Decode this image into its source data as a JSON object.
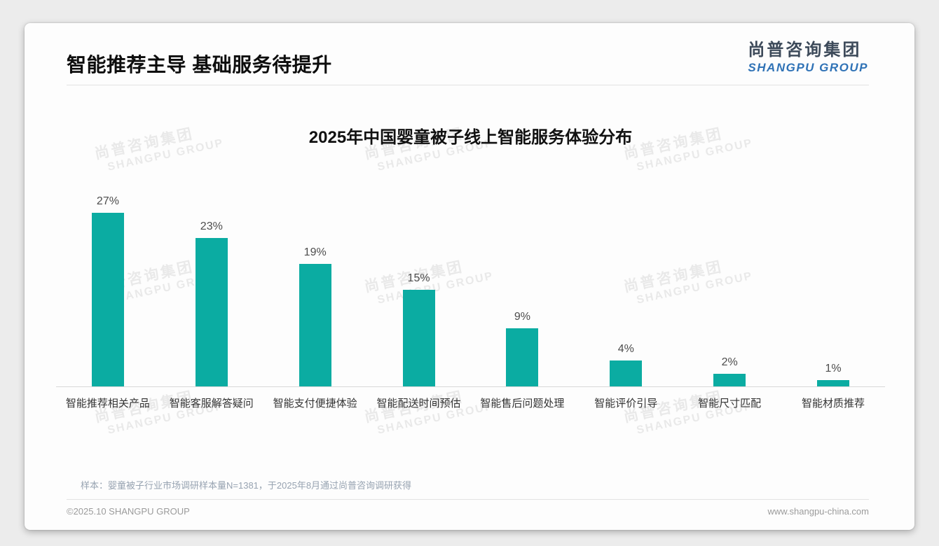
{
  "header": {
    "title": "智能推荐主导 基础服务待提升",
    "logo": {
      "cn": "尚普咨询集团",
      "en": "SHANGPU GROUP",
      "cn_color": "#3d4a5a",
      "en_color": "#2f72b6"
    }
  },
  "chart_data": {
    "type": "bar",
    "title": "2025年中国婴童被子线上智能服务体验分布",
    "categories": [
      "智能推荐相关产品",
      "智能客服解答疑问",
      "智能支付便捷体验",
      "智能配送时间预估",
      "智能售后问题处理",
      "智能评价引导",
      "智能尺寸匹配",
      "智能材质推荐"
    ],
    "values": [
      27,
      23,
      19,
      15,
      9,
      4,
      2,
      1
    ],
    "unit": "%",
    "value_label_format": "value+%",
    "bar_color": "#0BACA2",
    "xlabel": "",
    "ylabel": "",
    "ylim": [
      0,
      30
    ],
    "grid": false,
    "legend": false,
    "axis_line_color": "#d9d9d9"
  },
  "watermark": {
    "cn": "尚普咨询集团",
    "en": "SHANGPU GROUP"
  },
  "note": "样本：婴童被子行业市场调研样本量N=1381，于2025年8月通过尚普咨询调研获得",
  "footer": {
    "copyright": "©2025.10 SHANGPU GROUP",
    "website": "www.shangpu-china.com"
  }
}
